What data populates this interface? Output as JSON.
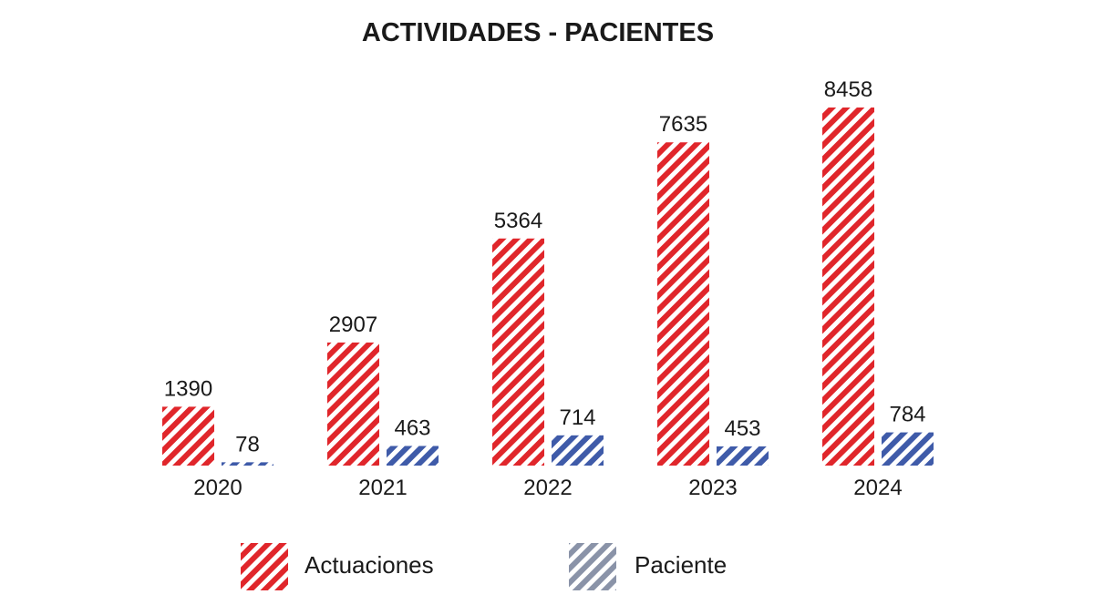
{
  "chart_data": {
    "type": "bar",
    "title": "ACTIVIDADES - PACIENTES",
    "xlabel": "",
    "ylabel": "",
    "categories": [
      "2020",
      "2021",
      "2022",
      "2023",
      "2024"
    ],
    "series": [
      {
        "name": "Actuaciones",
        "values": [
          1390,
          2907,
          5364,
          7635,
          8458
        ],
        "color": "#e0262b",
        "legend_color": "#e0262b"
      },
      {
        "name": "Paciente",
        "values": [
          78,
          463,
          714,
          453,
          784
        ],
        "color": "#3f5ba9",
        "legend_color": "#8a93a8"
      }
    ],
    "ylim": [
      0,
      8458
    ],
    "grid": false,
    "legend_position": "bottom",
    "bar_pattern": "diagonal-stripes",
    "data_labels": true
  }
}
